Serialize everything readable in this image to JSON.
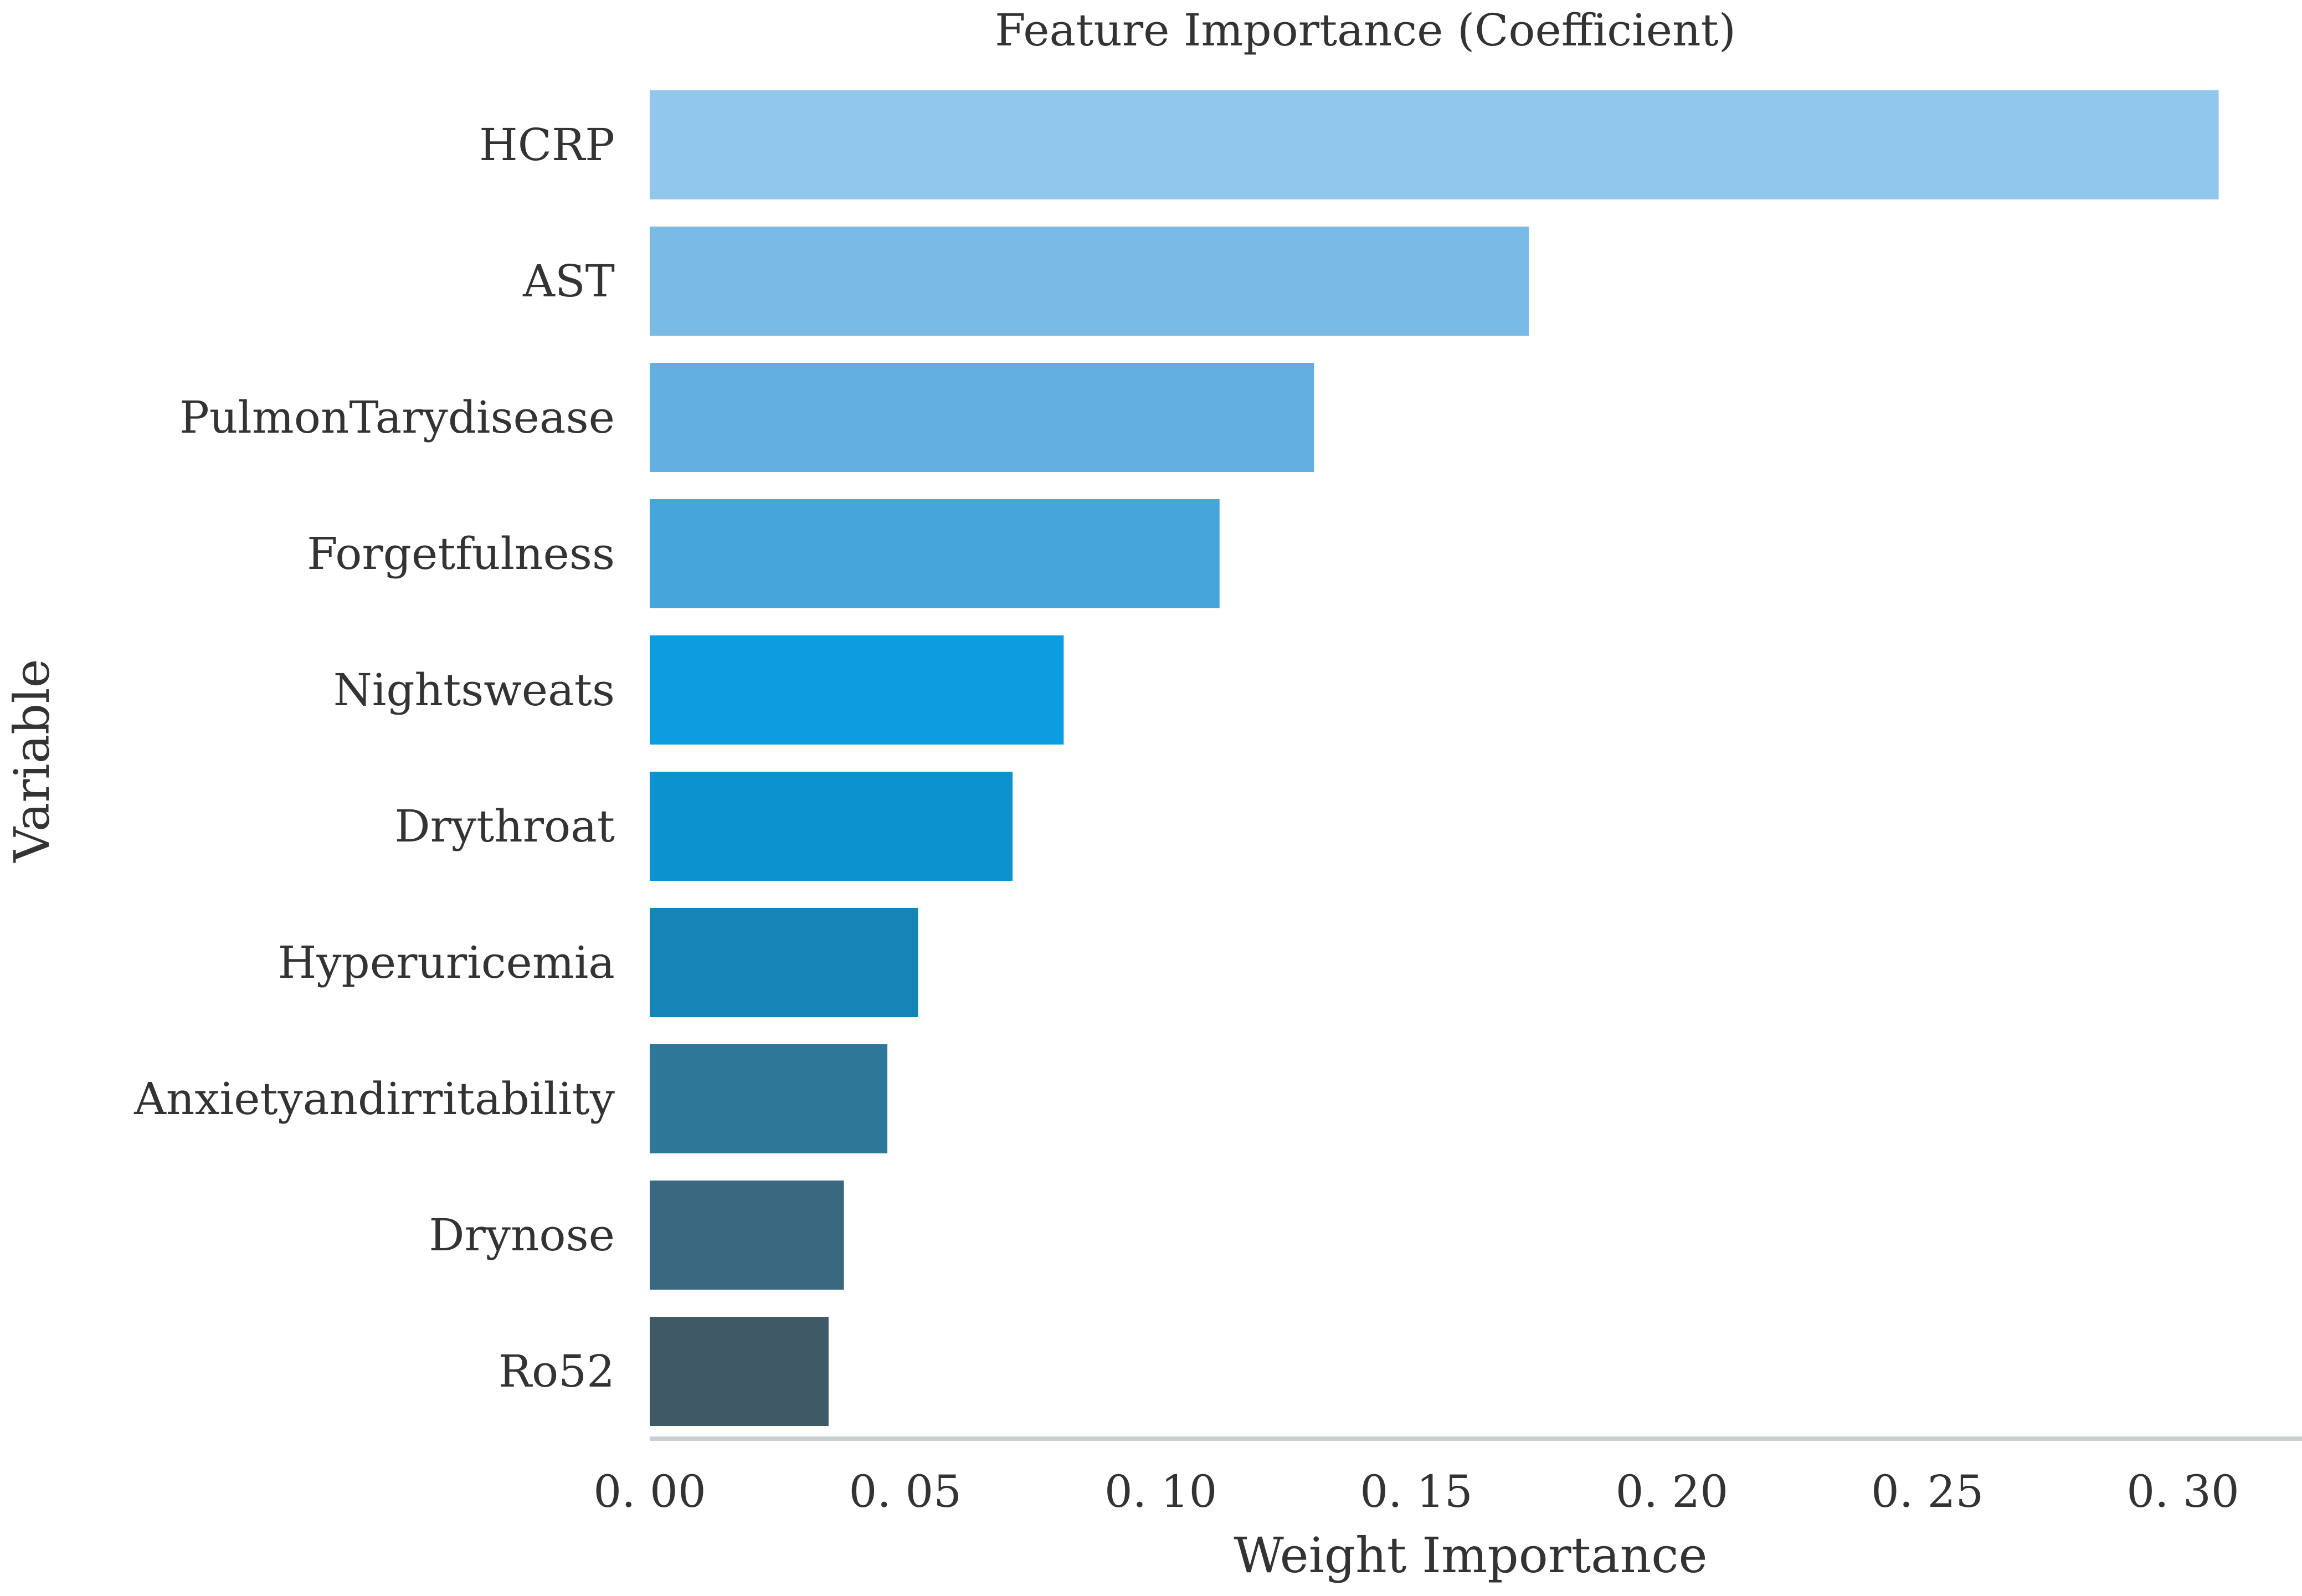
{
  "chart_data": {
    "type": "bar",
    "orientation": "horizontal",
    "title": "Feature Importance (Coefficient)",
    "xlabel": "Weight Importance",
    "ylabel": "Variable",
    "categories": [
      "HCRP",
      "AST",
      "PulmonTarydisease",
      "Forgetfulness",
      "Nightsweats",
      "Drythroat",
      "Hyperuricemia",
      "Anxietyandirritability",
      "Drynose",
      "Ro52"
    ],
    "values": [
      0.307,
      0.172,
      0.13,
      0.1115,
      0.081,
      0.071,
      0.0525,
      0.0465,
      0.038,
      0.035
    ],
    "colors": [
      "#92c7ec",
      "#79bbe5",
      "#61b0df",
      "#44a6da",
      "#0b9de0",
      "#0b92cf",
      "#1784b7",
      "#2f7799",
      "#3b6881",
      "#3f5a66"
    ],
    "xticks": [
      "0. 00",
      "0. 05",
      "0. 10",
      "0. 15",
      "0. 20",
      "0. 25",
      "0. 30"
    ],
    "xtick_values": [
      0,
      0.05,
      0.1,
      0.15,
      0.2,
      0.25,
      0.3
    ],
    "xlim": [
      0,
      0.3233
    ],
    "grid": false,
    "legend": "none"
  }
}
